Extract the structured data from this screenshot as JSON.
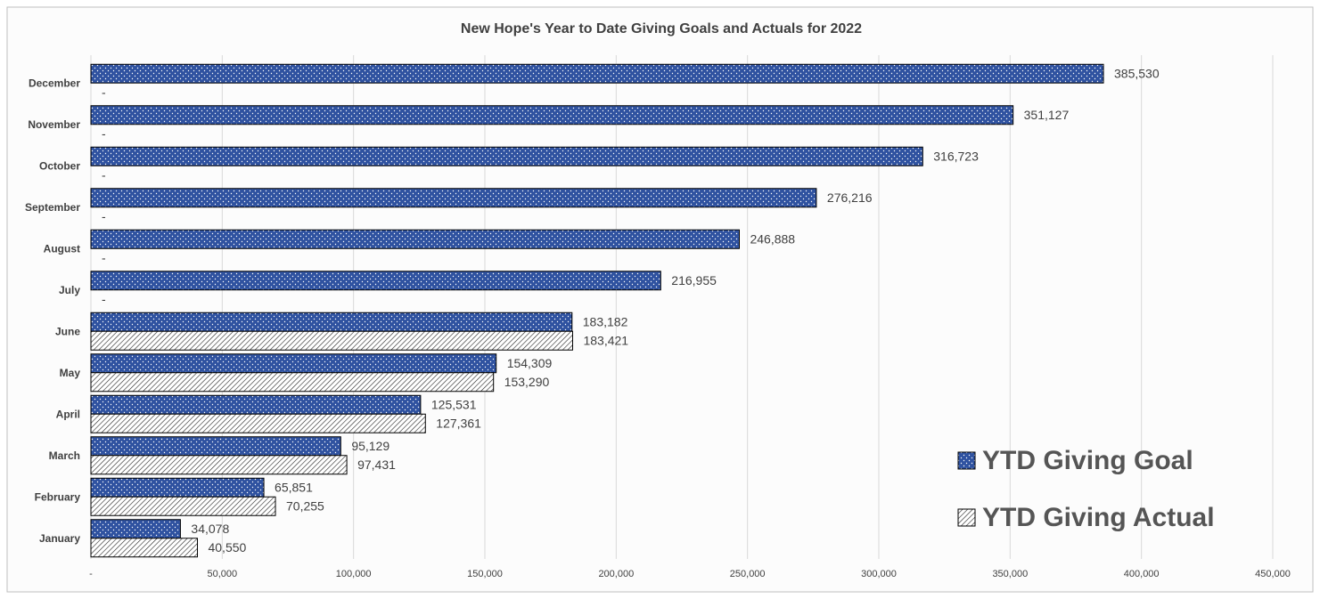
{
  "chart_data": {
    "type": "bar",
    "orientation": "horizontal",
    "title": "New Hope's Year to Date Giving Goals and Actuals for 2022",
    "categories": [
      "January",
      "February",
      "March",
      "April",
      "May",
      "June",
      "July",
      "August",
      "September",
      "October",
      "November",
      "December"
    ],
    "series": [
      {
        "name": "YTD Giving Goal",
        "color": "#2f52a0",
        "pattern": "dots",
        "values": [
          34078,
          65851,
          95129,
          125531,
          154309,
          183182,
          216955,
          246888,
          276216,
          316723,
          351127,
          385530
        ],
        "value_labels": [
          "34,078",
          "65,851",
          "95,129",
          "125,531",
          "154,309",
          "183,182",
          "216,955",
          "246,888",
          "276,216",
          "316,723",
          "351,127",
          "385,530"
        ]
      },
      {
        "name": "YTD Giving Actual",
        "color": "#222222",
        "pattern": "hatch",
        "values": [
          40550,
          70255,
          97431,
          127361,
          153290,
          183421,
          0,
          0,
          0,
          0,
          0,
          0
        ],
        "value_labels": [
          "40,550",
          "70,255",
          "97,431",
          "127,361",
          "153,290",
          "183,421",
          "-",
          "-",
          "-",
          "-",
          "-",
          "-"
        ]
      }
    ],
    "xlim": [
      0,
      450000
    ],
    "xticks": [
      {
        "value": 0,
        "label": "-"
      },
      {
        "value": 50000,
        "label": "50,000"
      },
      {
        "value": 100000,
        "label": "100,000"
      },
      {
        "value": 150000,
        "label": "150,000"
      },
      {
        "value": 200000,
        "label": "200,000"
      },
      {
        "value": 250000,
        "label": "250,000"
      },
      {
        "value": 300000,
        "label": "300,000"
      },
      {
        "value": 350000,
        "label": "350,000"
      },
      {
        "value": 400000,
        "label": "400,000"
      },
      {
        "value": 450000,
        "label": "450,000"
      }
    ],
    "grid": true,
    "legend": "bottom-right"
  }
}
